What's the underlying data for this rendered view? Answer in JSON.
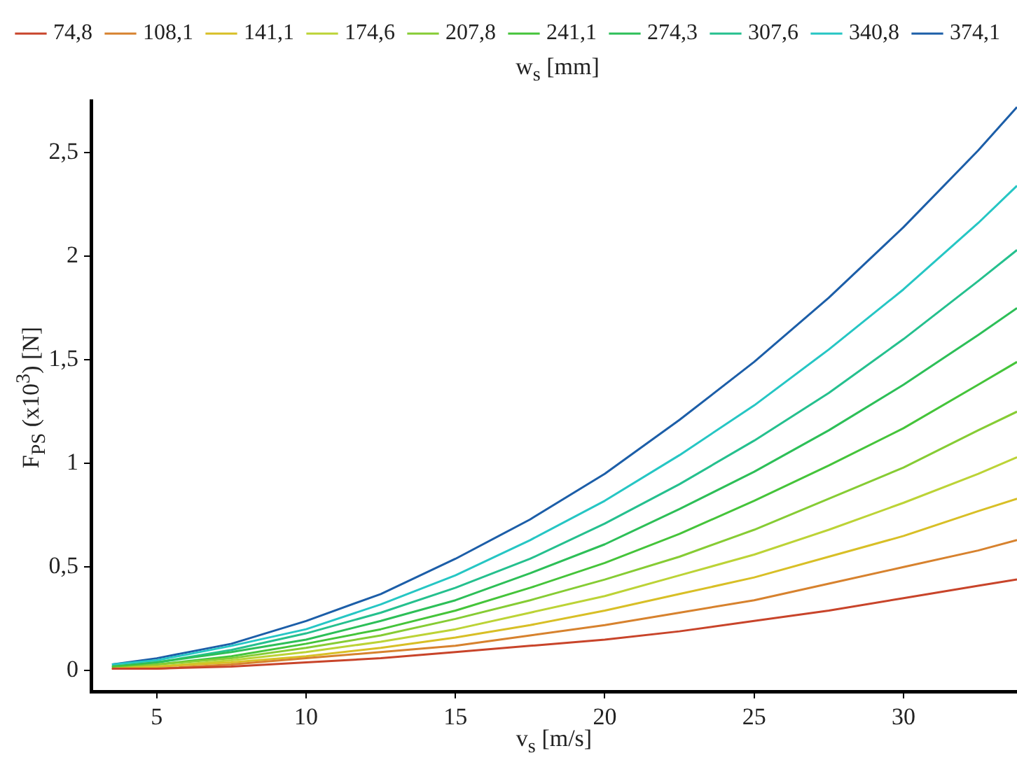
{
  "chart_data": {
    "type": "line",
    "xlabel": "v$_{s}$ [m/s]",
    "ylabel": "F$_{PS}$ (x10$^{3}$) [N]",
    "legend_title": "w$_{s}$ [mm]",
    "legend": "top",
    "grid": false,
    "marker": "none",
    "line_style": "solid",
    "x": [
      3.5,
      5,
      7.5,
      10,
      12.5,
      15,
      17.5,
      20,
      22.5,
      25,
      27.5,
      30,
      32.5,
      33.8
    ],
    "xlim": [
      2.8,
      33.8
    ],
    "xticks": [
      5,
      10,
      15,
      20,
      25,
      30
    ],
    "ylim": [
      -0.1,
      2.75
    ],
    "yticks": [
      0,
      {
        "value": 0.5,
        "label": "0,5"
      },
      1,
      {
        "value": 1.5,
        "label": "1,5"
      },
      2,
      {
        "value": 2.5,
        "label": "2,5"
      }
    ],
    "series": [
      {
        "name": "74,8",
        "color": "#c8442a",
        "values": [
          0.01,
          0.01,
          0.02,
          0.04,
          0.06,
          0.09,
          0.12,
          0.15,
          0.19,
          0.24,
          0.29,
          0.35,
          0.41,
          0.44
        ]
      },
      {
        "name": "108,1",
        "color": "#d7822e",
        "values": [
          0.01,
          0.01,
          0.03,
          0.06,
          0.09,
          0.12,
          0.17,
          0.22,
          0.28,
          0.34,
          0.42,
          0.5,
          0.58,
          0.63
        ]
      },
      {
        "name": "141,1",
        "color": "#d8bf26",
        "values": [
          0.01,
          0.02,
          0.04,
          0.07,
          0.11,
          0.16,
          0.22,
          0.29,
          0.37,
          0.45,
          0.55,
          0.65,
          0.77,
          0.83
        ]
      },
      {
        "name": "174,6",
        "color": "#bcd336",
        "values": [
          0.01,
          0.02,
          0.05,
          0.09,
          0.14,
          0.2,
          0.28,
          0.36,
          0.46,
          0.56,
          0.68,
          0.81,
          0.95,
          1.03
        ]
      },
      {
        "name": "207,8",
        "color": "#86cc34",
        "values": [
          0.01,
          0.03,
          0.06,
          0.11,
          0.17,
          0.25,
          0.34,
          0.44,
          0.55,
          0.68,
          0.83,
          0.98,
          1.16,
          1.25
        ]
      },
      {
        "name": "241,1",
        "color": "#45c43a",
        "values": [
          0.02,
          0.03,
          0.07,
          0.13,
          0.2,
          0.29,
          0.4,
          0.52,
          0.66,
          0.82,
          0.99,
          1.17,
          1.38,
          1.49
        ]
      },
      {
        "name": "274,3",
        "color": "#2dbf58",
        "values": [
          0.02,
          0.04,
          0.09,
          0.15,
          0.24,
          0.34,
          0.47,
          0.61,
          0.78,
          0.96,
          1.16,
          1.38,
          1.62,
          1.75
        ]
      },
      {
        "name": "307,6",
        "color": "#25c08e",
        "values": [
          0.02,
          0.04,
          0.1,
          0.18,
          0.28,
          0.4,
          0.54,
          0.71,
          0.9,
          1.11,
          1.34,
          1.6,
          1.88,
          2.03
        ]
      },
      {
        "name": "340,8",
        "color": "#26c6c4",
        "values": [
          0.03,
          0.05,
          0.12,
          0.2,
          0.32,
          0.46,
          0.63,
          0.82,
          1.04,
          1.28,
          1.55,
          1.84,
          2.16,
          2.34
        ]
      },
      {
        "name": "374,1",
        "color": "#1c5ea8",
        "values": [
          0.03,
          0.06,
          0.13,
          0.24,
          0.37,
          0.54,
          0.73,
          0.95,
          1.21,
          1.49,
          1.8,
          2.14,
          2.51,
          2.72
        ]
      }
    ]
  }
}
